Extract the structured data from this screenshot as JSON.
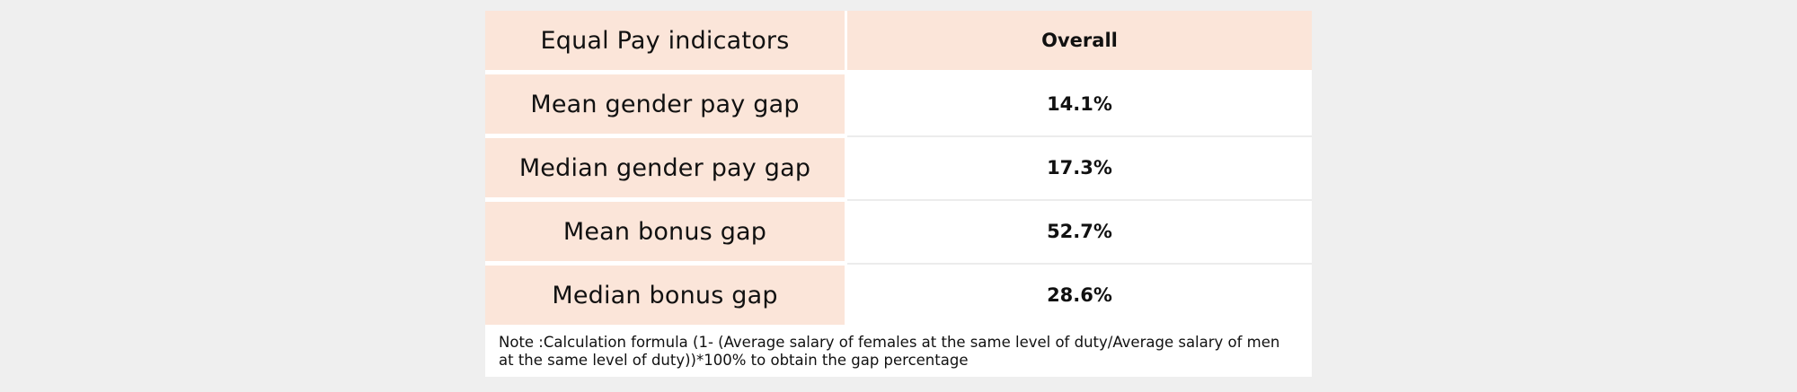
{
  "table": {
    "header": {
      "label": "Equal Pay indicators",
      "value": "Overall"
    },
    "rows": [
      {
        "label": "Mean gender pay gap",
        "value": "14.1%"
      },
      {
        "label": "Median gender pay gap",
        "value": "17.3%"
      },
      {
        "label": "Mean bonus gap",
        "value": "52.7%"
      },
      {
        "label": "Median bonus gap",
        "value": "28.6%"
      }
    ]
  },
  "note": "Note :Calculation formula (1- (Average salary of females at the same level of duty/Average salary of men at the same level of duty))*100% to obtain the gap percentage",
  "colors": {
    "label_background": "#fbe5d9",
    "page_background": "#efefef",
    "table_background": "#ffffff"
  }
}
